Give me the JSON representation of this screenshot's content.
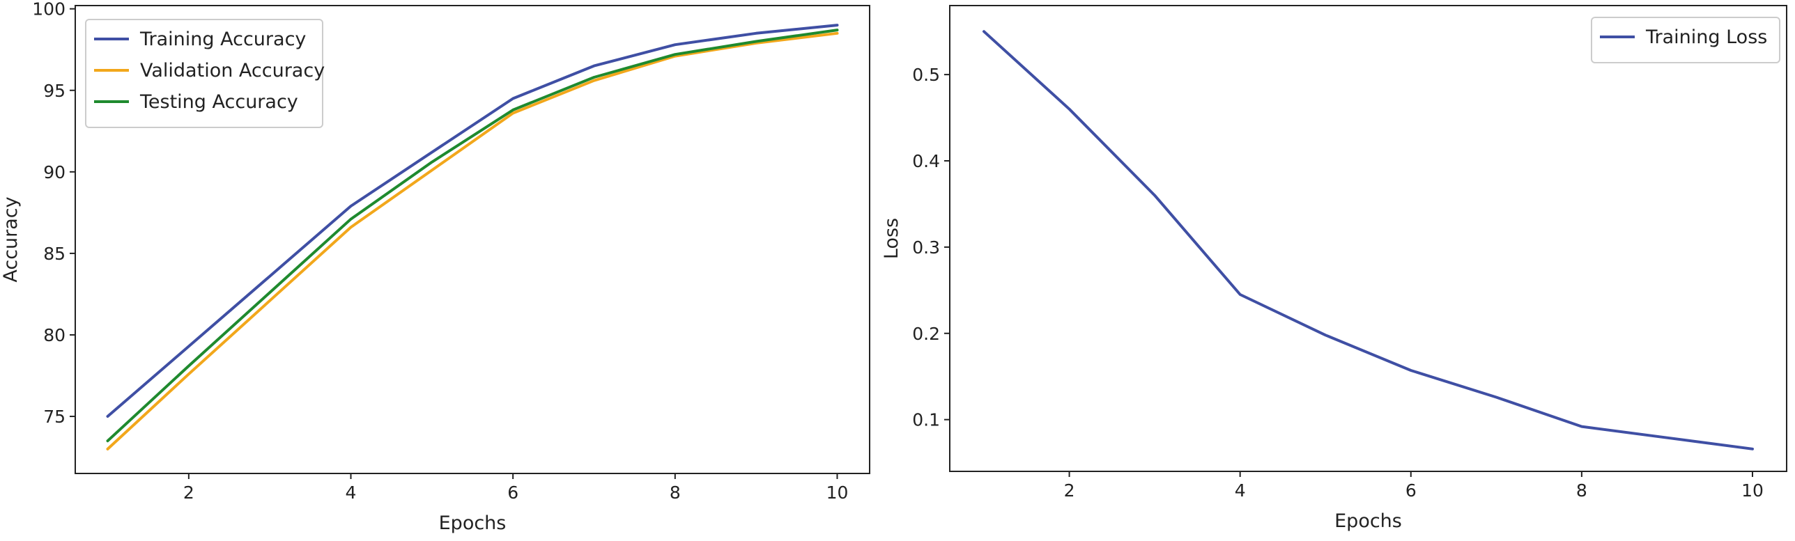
{
  "chart_data": [
    {
      "type": "line",
      "title": "",
      "xlabel": "Epochs",
      "ylabel": "Accuracy",
      "xlim": [
        0.6,
        10.4
      ],
      "ylim": [
        71.5,
        100.2
      ],
      "xticks": [
        2,
        4,
        6,
        8,
        10
      ],
      "yticks": [
        75,
        80,
        85,
        90,
        95,
        100
      ],
      "grid": false,
      "legend_position": "upper-left",
      "x": [
        1,
        2,
        3,
        4,
        5,
        6,
        7,
        8,
        9,
        10
      ],
      "series": [
        {
          "name": "Training Accuracy",
          "color": "#3f4fa4",
          "values": [
            75.0,
            79.3,
            83.6,
            87.9,
            91.2,
            94.5,
            96.5,
            97.8,
            98.5,
            99.0
          ]
        },
        {
          "name": "Validation Accuracy",
          "color": "#f2a71b",
          "values": [
            73.0,
            77.6,
            82.1,
            86.6,
            90.1,
            93.6,
            95.6,
            97.1,
            97.9,
            98.5
          ]
        },
        {
          "name": "Testing Accuracy",
          "color": "#1f8a2e",
          "values": [
            73.5,
            78.1,
            82.6,
            87.1,
            90.6,
            93.8,
            95.8,
            97.2,
            98.0,
            98.7
          ]
        }
      ]
    },
    {
      "type": "line",
      "title": "",
      "xlabel": "Epochs",
      "ylabel": "Loss",
      "xlim": [
        0.6,
        10.4
      ],
      "ylim": [
        0.04,
        0.58
      ],
      "xticks": [
        2,
        4,
        6,
        8,
        10
      ],
      "yticks": [
        0.1,
        0.2,
        0.3,
        0.4,
        0.5
      ],
      "grid": false,
      "legend_position": "upper-right",
      "x": [
        1,
        2,
        3,
        4,
        5,
        6,
        7,
        8,
        9,
        10
      ],
      "series": [
        {
          "name": "Training Loss",
          "color": "#3f4fa4",
          "values": [
            0.55,
            0.46,
            0.36,
            0.245,
            0.198,
            0.157,
            0.126,
            0.092,
            0.079,
            0.066
          ]
        }
      ]
    }
  ]
}
